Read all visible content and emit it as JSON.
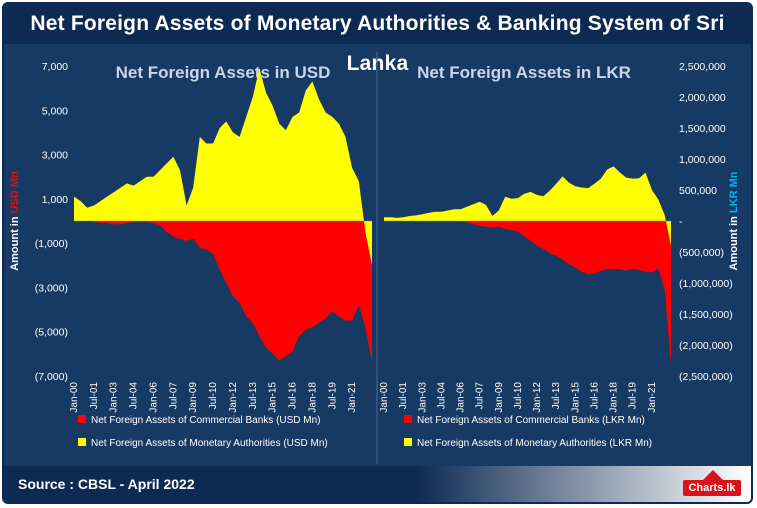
{
  "header": {
    "title": "Net Foreign Assets of Monetary Authorities & Banking System of Sri Lanka"
  },
  "footer": {
    "source": "Source : CBSL - April 2022",
    "logo": "Charts.lk"
  },
  "colors": {
    "background": "#163a63",
    "header": "#0d2a52",
    "commercial": "#ff0000",
    "monetary": "#ffff00",
    "usd_axis_label": "#ff0000",
    "lkr_axis_label": "#00b0f0"
  },
  "chart_data": [
    {
      "type": "area",
      "title": "Net Foreign Assets in USD",
      "ylabel": "Amount in USD Mn",
      "ylim": [
        -7000,
        7000
      ],
      "yticks": [
        7000,
        5000,
        3000,
        1000,
        -1000,
        -3000,
        -5000,
        -7000
      ],
      "ytick_labels": [
        "7,000",
        "5,000",
        "3,000",
        "1,000",
        "(1,000)",
        "(3,000)",
        "(5,000)",
        "(7,000)"
      ],
      "xtick_labels": [
        "Jan-00",
        "Jul-01",
        "Jan-03",
        "Jul-04",
        "Jan-06",
        "Jul-07",
        "Jan-09",
        "Jul-10",
        "Jan-12",
        "Jul-13",
        "Jan-15",
        "Jul-16",
        "Jan-18",
        "Jul-19",
        "Jan-21"
      ],
      "x": [
        "Jan-00",
        "Jul-00",
        "Jan-01",
        "Jul-01",
        "Jan-02",
        "Jul-02",
        "Jan-03",
        "Jul-03",
        "Jan-04",
        "Jul-04",
        "Jan-05",
        "Jul-05",
        "Jan-06",
        "Jul-06",
        "Jan-07",
        "Jul-07",
        "Jan-08",
        "Jul-08",
        "Jan-09",
        "Jul-09",
        "Jan-10",
        "Jul-10",
        "Jan-11",
        "Jul-11",
        "Jan-12",
        "Jul-12",
        "Jan-13",
        "Jul-13",
        "Jan-14",
        "Jul-14",
        "Jan-15",
        "Jul-15",
        "Jan-16",
        "Jul-16",
        "Jan-17",
        "Jul-17",
        "Jan-18",
        "Jul-18",
        "Jan-19",
        "Jul-19",
        "Jan-20",
        "Jul-20",
        "Jan-21",
        "Jul-21",
        "Jan-22",
        "Mar-22"
      ],
      "series": [
        {
          "name": "Net Foreign Assets of Commercial Banks (USD Mn)",
          "color": "#ff0000",
          "values": [
            300,
            250,
            150,
            -50,
            -80,
            -100,
            -150,
            -150,
            -100,
            -50,
            -50,
            -50,
            -100,
            -200,
            -500,
            -700,
            -800,
            -900,
            -800,
            -1200,
            -1300,
            -1500,
            -2200,
            -2800,
            -3400,
            -3700,
            -4300,
            -4600,
            -5200,
            -5700,
            -6000,
            -6300,
            -6100,
            -5900,
            -5200,
            -4900,
            -4800,
            -4600,
            -4400,
            -4100,
            -4300,
            -4500,
            -4500,
            -3800,
            -4800,
            -6400
          ]
        },
        {
          "name": "Net Foreign Assets of Monetary Authorities (USD Mn)",
          "color": "#ffff00",
          "values": [
            1100,
            900,
            600,
            700,
            900,
            1100,
            1300,
            1500,
            1700,
            1600,
            1800,
            2000,
            2000,
            2300,
            2600,
            2900,
            2300,
            700,
            1500,
            3800,
            3500,
            3500,
            4200,
            4500,
            4000,
            3800,
            4700,
            5600,
            6900,
            5800,
            5200,
            4400,
            4100,
            4700,
            4900,
            5900,
            6300,
            5500,
            4900,
            4700,
            4400,
            3800,
            2400,
            1800,
            -500,
            -2000
          ]
        }
      ]
    },
    {
      "type": "area",
      "title": "Net Foreign Assets in LKR",
      "ylabel": "Amount in LKR Mn",
      "ylim": [
        -2500000,
        2500000
      ],
      "yticks": [
        2500000,
        2000000,
        1500000,
        1000000,
        500000,
        0,
        -500000,
        -1000000,
        -1500000,
        -2000000,
        -2500000
      ],
      "ytick_labels": [
        "2,500,000",
        "2,000,000",
        "1,500,000",
        "1,000,000",
        "500,000",
        "-",
        "(500,000)",
        "(1,000,000)",
        "(1,500,000)",
        "(2,000,000)",
        "(2,500,000)"
      ],
      "xtick_labels": [
        "Jan-00",
        "Jul-01",
        "Jan-03",
        "Jul-04",
        "Jan-06",
        "Jul-07",
        "Jan-09",
        "Jul-10",
        "Jan-12",
        "Jul-13",
        "Jan-15",
        "Jul-16",
        "Jan-18",
        "Jul-19",
        "Jan-21"
      ],
      "x": [
        "Jan-00",
        "Jul-00",
        "Jan-01",
        "Jul-01",
        "Jan-02",
        "Jul-02",
        "Jan-03",
        "Jul-03",
        "Jan-04",
        "Jul-04",
        "Jan-05",
        "Jul-05",
        "Jan-06",
        "Jul-06",
        "Jan-07",
        "Jul-07",
        "Jan-08",
        "Jul-08",
        "Jan-09",
        "Jul-09",
        "Jan-10",
        "Jul-10",
        "Jan-11",
        "Jul-11",
        "Jan-12",
        "Jul-12",
        "Jan-13",
        "Jul-13",
        "Jan-14",
        "Jul-14",
        "Jan-15",
        "Jul-15",
        "Jan-16",
        "Jul-16",
        "Jan-17",
        "Jul-17",
        "Jan-18",
        "Jul-18",
        "Jan-19",
        "Jul-19",
        "Jan-20",
        "Jul-20",
        "Jan-21",
        "Jul-21",
        "Jan-22",
        "Mar-22"
      ],
      "series": [
        {
          "name": "Net Foreign Assets of Commercial Banks (LKR Mn)",
          "color": "#ff0000",
          "values": [
            10000,
            5000,
            0,
            -5000,
            -5000,
            -5000,
            -10000,
            -10000,
            -10000,
            -5000,
            -5000,
            -5000,
            -10000,
            -20000,
            -50000,
            -80000,
            -90000,
            -100000,
            -90000,
            -130000,
            -150000,
            -170000,
            -250000,
            -320000,
            -400000,
            -450000,
            -520000,
            -560000,
            -620000,
            -700000,
            -750000,
            -820000,
            -860000,
            -850000,
            -800000,
            -780000,
            -770000,
            -780000,
            -800000,
            -770000,
            -790000,
            -820000,
            -830000,
            -760000,
            -1100000,
            -2300000
          ]
        },
        {
          "name": "Net Foreign Assets of Monetary Authorities (LKR Mn)",
          "color": "#ffff00",
          "values": [
            60000,
            60000,
            50000,
            60000,
            80000,
            90000,
            110000,
            130000,
            150000,
            150000,
            170000,
            190000,
            190000,
            230000,
            270000,
            310000,
            260000,
            80000,
            170000,
            390000,
            360000,
            370000,
            440000,
            470000,
            420000,
            400000,
            490000,
            600000,
            720000,
            620000,
            560000,
            540000,
            530000,
            600000,
            680000,
            830000,
            880000,
            780000,
            700000,
            680000,
            690000,
            780000,
            500000,
            350000,
            100000,
            -400000
          ]
        }
      ]
    }
  ]
}
